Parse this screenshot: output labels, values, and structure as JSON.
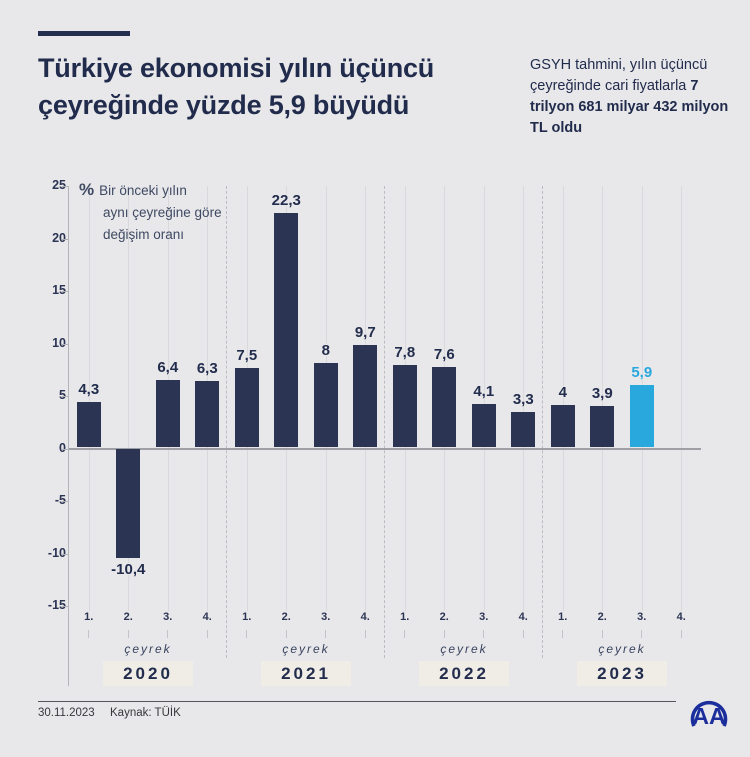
{
  "page": {
    "background": "#e8e8ea"
  },
  "header": {
    "accent_color": "#242f4f",
    "title": "Türkiye ekonomisi yılın üçüncü çeyreğinde yüzde 5,9 büyüdü",
    "subtitle_regular": "GSYH tahmini, yılın üçüncü çeyreğinde cari fiyatlarla ",
    "subtitle_bold": "7 trilyon 681 milyar 432 milyon TL oldu"
  },
  "chart_data": {
    "type": "bar",
    "annotation": {
      "symbol": "%",
      "line1": "Bir önceki yılın",
      "line2": "aynı çeyreğine göre",
      "line3": "değişim oranı"
    },
    "ylim": [
      -15,
      25
    ],
    "yticks": [
      25,
      20,
      15,
      10,
      5,
      0,
      -5,
      -10,
      -15
    ],
    "quarter_labels": [
      "1.",
      "2.",
      "3.",
      "4."
    ],
    "axis_unit_label": "çeyrek",
    "bar_color": "#2b3452",
    "highlight_color": "#29a8de",
    "label_color": "#222d4d",
    "groups": [
      {
        "year": "2020",
        "values": [
          4.3,
          -10.4,
          6.4,
          6.3
        ],
        "labels": [
          "4,3",
          "-10,4",
          "6,4",
          "6,3"
        ]
      },
      {
        "year": "2021",
        "values": [
          7.5,
          22.3,
          8,
          9.7
        ],
        "labels": [
          "7,5",
          "22,3",
          "8",
          "9,7"
        ]
      },
      {
        "year": "2022",
        "values": [
          7.8,
          7.6,
          4.1,
          3.3
        ],
        "labels": [
          "7,8",
          "7,6",
          "4,1",
          "3,3"
        ]
      },
      {
        "year": "2023",
        "values": [
          4,
          3.9,
          5.9
        ],
        "labels": [
          "4",
          "3,9",
          "5,9"
        ],
        "highlight_index": 2
      }
    ]
  },
  "footer": {
    "date": "30.11.2023",
    "source": "Kaynak: TÜİK",
    "logo_text": "AA"
  }
}
